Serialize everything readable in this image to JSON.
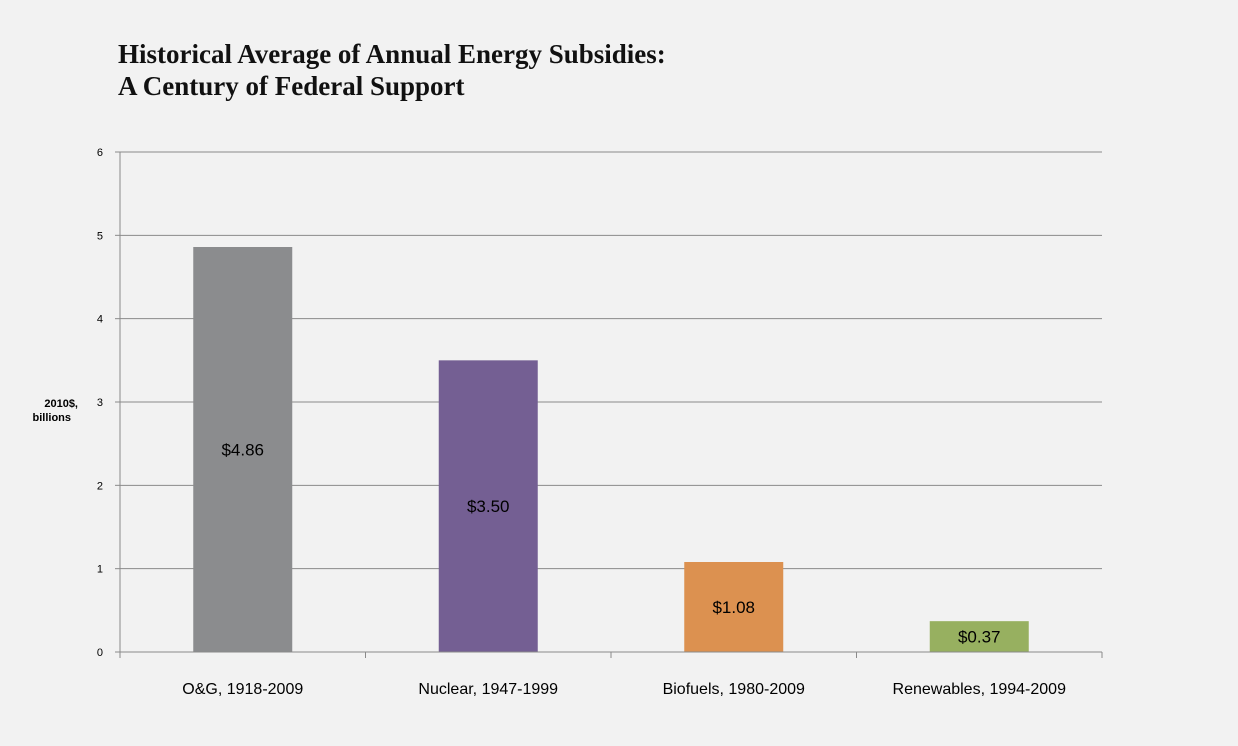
{
  "chart_data": {
    "type": "bar",
    "title_lines": [
      "Historical Average of Annual Energy Subsidies:",
      "A Century of Federal Support"
    ],
    "ylabel_lines": [
      "2010$,",
      "billions"
    ],
    "xlabel": "",
    "categories": [
      "O&G, 1918-2009",
      "Nuclear, 1947-1999",
      "Biofuels, 1980-2009",
      "Renewables, 1994-2009"
    ],
    "values": [
      4.86,
      3.5,
      1.08,
      0.37
    ],
    "data_labels": [
      "$4.86",
      "$3.50",
      "$1.08",
      "$0.37"
    ],
    "colors": [
      "#8b8c8e",
      "#745f93",
      "#dc9150",
      "#97b060"
    ],
    "ylim": [
      0,
      6
    ],
    "yticks": [
      0,
      1,
      2,
      3,
      4,
      5,
      6
    ],
    "grid": true,
    "legend": "none"
  }
}
